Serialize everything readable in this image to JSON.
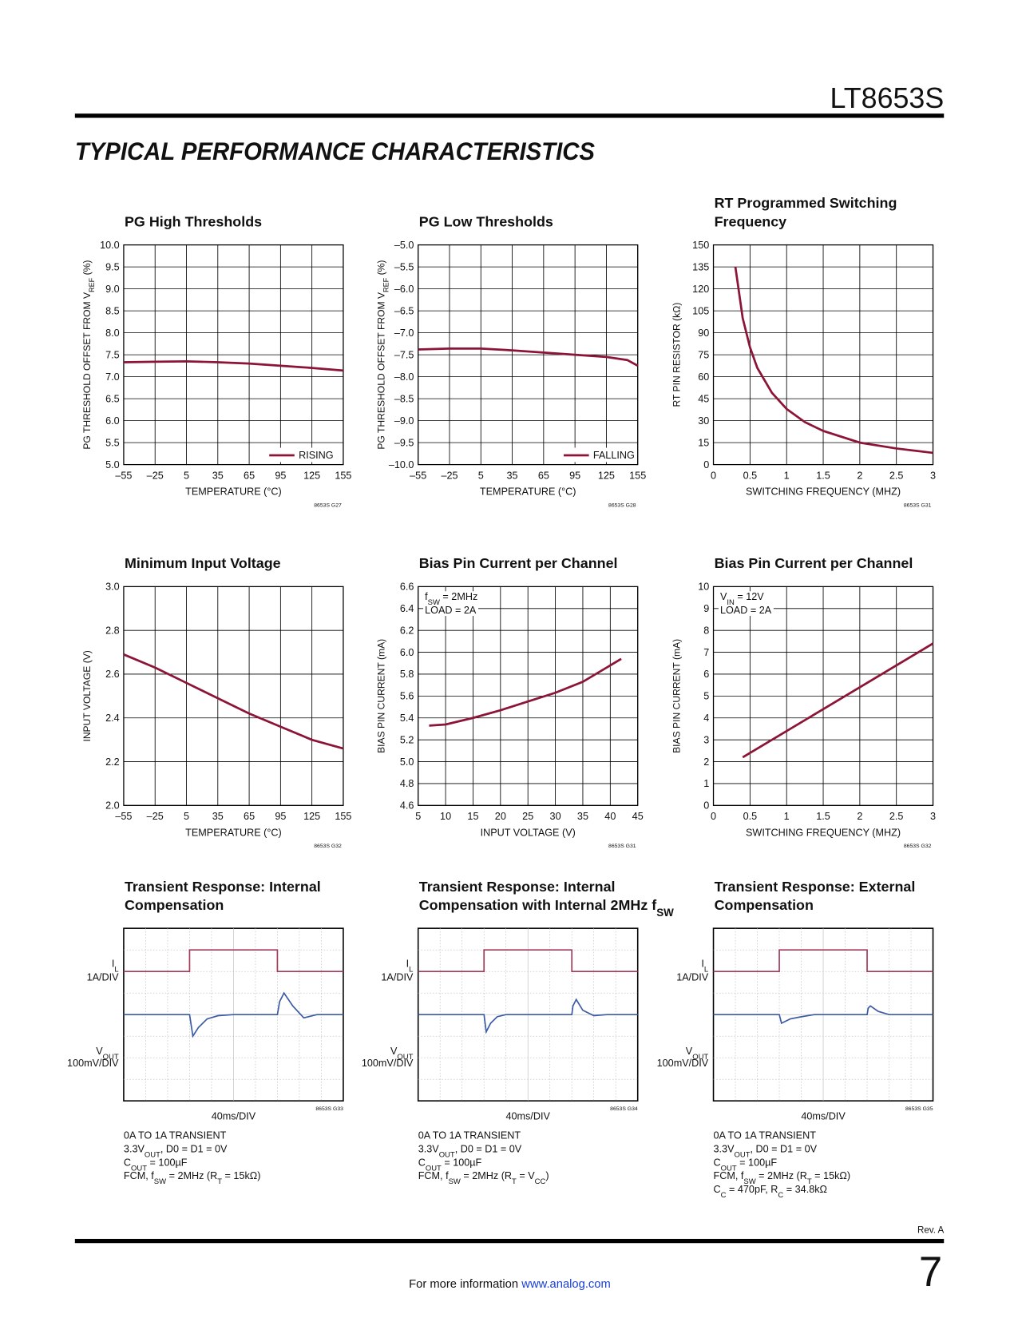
{
  "header": {
    "part": "LT8653S",
    "section": "TYPICAL PERFORMANCE CHARACTERISTICS"
  },
  "chart_data": [
    {
      "type": "line",
      "title": [
        "PG High Thresholds"
      ],
      "xlabel": "TEMPERATURE (°C)",
      "ylabel": [
        "PG THRESHOLD OFFSET FROM  V",
        "REF",
        " (%)"
      ],
      "xlim": [
        -55,
        155
      ],
      "xticks": [
        {
          "value": -55,
          "label": "–55"
        },
        {
          "value": -25,
          "label": "–25"
        },
        5,
        35,
        65,
        95,
        125,
        155
      ],
      "ylim": [
        5,
        10
      ],
      "yticks": [
        {
          "value": 5,
          "label": "5.0"
        },
        5.5,
        {
          "value": 6,
          "label": "6.0"
        },
        6.5,
        {
          "value": 7,
          "label": "7.0"
        },
        7.5,
        {
          "value": 8,
          "label": "8.0"
        },
        8.5,
        {
          "value": 9,
          "label": "9.0"
        },
        9.5,
        {
          "value": 10,
          "label": "10.0"
        }
      ],
      "grid": true,
      "legend": "lower right",
      "x": [
        -55,
        -25,
        5,
        35,
        65,
        95,
        125,
        155
      ],
      "series": [
        {
          "name": "RISING",
          "color": "#8c1537",
          "values": [
            7.33,
            7.34,
            7.35,
            7.33,
            7.3,
            7.25,
            7.2,
            7.14
          ]
        }
      ],
      "figure_id": "8653S G27"
    },
    {
      "type": "line",
      "title": [
        "PG Low Thresholds"
      ],
      "xlabel": "TEMPERATURE (°C)",
      "ylabel": [
        "PG THRESHOLD OFFSET FROM  V",
        "REF",
        " (%)"
      ],
      "xlim": [
        -55,
        155
      ],
      "xticks": [
        {
          "value": -55,
          "label": "–55"
        },
        {
          "value": -25,
          "label": "–25"
        },
        5,
        35,
        65,
        95,
        125,
        155
      ],
      "ylim": [
        -10,
        -5
      ],
      "yticks": [
        {
          "value": -10,
          "label": "–10.0"
        },
        {
          "value": -9.5,
          "label": "–9.5"
        },
        {
          "value": -9,
          "label": "–9.0"
        },
        {
          "value": -8.5,
          "label": "–8.5"
        },
        {
          "value": -8,
          "label": "–8.0"
        },
        {
          "value": -7.5,
          "label": "–7.5"
        },
        {
          "value": -7,
          "label": "–7.0"
        },
        {
          "value": -6.5,
          "label": "–6.5"
        },
        {
          "value": -6,
          "label": "–6.0"
        },
        {
          "value": -5.5,
          "label": "–5.5"
        },
        {
          "value": -5,
          "label": "–5.0"
        }
      ],
      "grid": true,
      "legend": "lower right",
      "x": [
        -55,
        -25,
        5,
        35,
        65,
        95,
        125,
        145,
        155
      ],
      "series": [
        {
          "name": "FALLING",
          "color": "#8c1537",
          "values": [
            -7.38,
            -7.36,
            -7.36,
            -7.4,
            -7.45,
            -7.5,
            -7.55,
            -7.62,
            -7.75
          ]
        }
      ],
      "figure_id": "8653S G28"
    },
    {
      "type": "line",
      "title": [
        "RT Programmed Switching",
        "Frequency"
      ],
      "xlabel": "SWITCHING FREQUENCY (MHZ)",
      "ylabel": "RT PIN RESISTOR (kΩ)",
      "xlim": [
        0,
        3
      ],
      "xticks": [
        0,
        0.5,
        1,
        1.5,
        2,
        2.5,
        3
      ],
      "ylim": [
        0,
        150
      ],
      "yticks": [
        0,
        15,
        30,
        45,
        60,
        75,
        90,
        105,
        120,
        135,
        150
      ],
      "grid": true,
      "x": [
        0.3,
        0.4,
        0.5,
        0.6,
        0.8,
        1,
        1.25,
        1.5,
        2,
        2.5,
        3
      ],
      "series": [
        {
          "color": "#8c1537",
          "values": [
            135,
            100,
            80,
            66,
            49,
            38,
            29,
            23,
            15,
            11,
            8
          ]
        }
      ],
      "figure_id": "8653S G31"
    },
    {
      "type": "line",
      "title": [
        "Minimum Input Voltage"
      ],
      "xlabel": "TEMPERATURE (°C)",
      "ylabel": "INPUT VOLTAGE (V)",
      "xlim": [
        -55,
        155
      ],
      "xticks": [
        {
          "value": -55,
          "label": "–55"
        },
        {
          "value": -25,
          "label": "–25"
        },
        5,
        35,
        65,
        95,
        125,
        155
      ],
      "ylim": [
        2,
        3
      ],
      "yticks": [
        {
          "value": 2,
          "label": "2.0"
        },
        2.2,
        2.4,
        2.6,
        2.8,
        {
          "value": 3,
          "label": "3.0"
        }
      ],
      "grid": true,
      "x": [
        -55,
        -25,
        5,
        35,
        65,
        95,
        125,
        155
      ],
      "series": [
        {
          "color": "#8c1537",
          "values": [
            2.69,
            2.63,
            2.56,
            2.49,
            2.42,
            2.36,
            2.3,
            2.26
          ]
        }
      ],
      "figure_id": "8653S G32"
    },
    {
      "type": "line",
      "title": [
        "Bias Pin Current per Channel"
      ],
      "xlabel": "INPUT VOLTAGE (V)",
      "ylabel": "BIAS PIN CURRENT  (mA)",
      "xlim": [
        5,
        45
      ],
      "xticks": [
        5,
        10,
        15,
        20,
        25,
        30,
        35,
        40,
        45
      ],
      "ylim": [
        4.6,
        6.6
      ],
      "yticks": [
        4.6,
        4.8,
        {
          "value": 5,
          "label": "5.0"
        },
        5.2,
        5.4,
        5.6,
        5.8,
        {
          "value": 6,
          "label": "6.0"
        },
        6.2,
        6.4,
        6.6
      ],
      "grid": true,
      "annotations": [
        [
          "f",
          "SW",
          " = 2MHz"
        ],
        "LOAD = 2A"
      ],
      "x": [
        7,
        10,
        15,
        20,
        25,
        30,
        35,
        42
      ],
      "series": [
        {
          "color": "#8c1537",
          "values": [
            5.33,
            5.34,
            5.4,
            5.47,
            5.55,
            5.63,
            5.73,
            5.94
          ]
        }
      ],
      "figure_id": "8653S G31"
    },
    {
      "type": "line",
      "title": [
        "Bias Pin Current per Channel"
      ],
      "xlabel": "SWITCHING FREQUENCY (MHZ)",
      "ylabel": "BIAS PIN CURRENT  (mA)",
      "xlim": [
        0,
        3
      ],
      "xticks": [
        0,
        0.5,
        1,
        1.5,
        2,
        2.5,
        3
      ],
      "ylim": [
        0,
        10
      ],
      "yticks": [
        0,
        1,
        2,
        3,
        4,
        5,
        6,
        7,
        8,
        9,
        10
      ],
      "grid": true,
      "annotations": [
        [
          "V",
          "IN",
          " = 12V"
        ],
        "LOAD = 2A"
      ],
      "x": [
        0.4,
        3
      ],
      "series": [
        {
          "color": "#8c1537",
          "values": [
            2.2,
            7.4
          ]
        }
      ],
      "figure_id": "8653S G32"
    },
    {
      "type": "scope",
      "title": [
        "Transient Response: Internal",
        "Compensation"
      ],
      "xlabel": "40ms/DIV",
      "xlim": [
        0,
        10
      ],
      "ylim": [
        0,
        8
      ],
      "series": [
        {
          "name": [
            "I",
            "L"
          ],
          "scale": "1A/DIV",
          "color": "#a23a58",
          "x": [
            0,
            3,
            3,
            7,
            7,
            10
          ],
          "values": [
            6,
            6,
            7,
            7,
            6,
            6
          ]
        },
        {
          "name": [
            "V",
            "OUT"
          ],
          "scale": "100mV/DIV",
          "color": "#3b5ba5",
          "x": [
            0,
            3,
            3.15,
            3.4,
            3.8,
            4.3,
            5,
            7,
            7.1,
            7.3,
            7.7,
            8.2,
            8.8,
            10
          ],
          "values": [
            4,
            4,
            3,
            3.4,
            3.8,
            3.95,
            4,
            4,
            4.6,
            5,
            4.4,
            3.85,
            4,
            4
          ]
        }
      ],
      "figure_id": "8653S G33",
      "notes": [
        "0A TO 1A TRANSIENT",
        [
          "3.3V",
          "OUT",
          ", D0 = D1 = 0V"
        ],
        [
          "C",
          "OUT",
          " = 100µF"
        ],
        [
          "FCM, f",
          "SW",
          " = 2MHz (R",
          "T",
          " = 15kΩ)"
        ]
      ]
    },
    {
      "type": "scope",
      "title": [
        "Transient Response: Internal",
        [
          "Compensation with Internal 2MHz f",
          "SW"
        ]
      ],
      "xlabel": "40ms/DIV",
      "xlim": [
        0,
        10
      ],
      "ylim": [
        0,
        8
      ],
      "series": [
        {
          "name": [
            "I",
            "L"
          ],
          "scale": "1A/DIV",
          "color": "#a23a58",
          "x": [
            0,
            3,
            3,
            7,
            7,
            10
          ],
          "values": [
            6,
            6,
            7,
            7,
            6,
            6
          ]
        },
        {
          "name": [
            "V",
            "OUT"
          ],
          "scale": "100mV/DIV",
          "color": "#3b5ba5",
          "x": [
            0,
            3,
            3.1,
            3.3,
            3.6,
            4,
            7,
            7.05,
            7.2,
            7.5,
            8,
            8.6,
            10
          ],
          "values": [
            4,
            4,
            3.2,
            3.6,
            3.9,
            4,
            4,
            4.4,
            4.7,
            4.2,
            3.95,
            4,
            4
          ]
        }
      ],
      "figure_id": "8653S G34",
      "notes": [
        "0A TO 1A TRANSIENT",
        [
          "3.3V",
          "OUT",
          ", D0 = D1 = 0V"
        ],
        [
          "C",
          "OUT",
          " = 100µF"
        ],
        [
          "FCM, f",
          "SW",
          " = 2MHz (R",
          "T",
          " = V",
          "CC",
          ")"
        ]
      ]
    },
    {
      "type": "scope",
      "title": [
        "Transient Response: External",
        "Compensation"
      ],
      "xlabel": "40ms/DIV",
      "xlim": [
        0,
        10
      ],
      "ylim": [
        0,
        8
      ],
      "series": [
        {
          "name": [
            "I",
            "L"
          ],
          "scale": "1A/DIV",
          "color": "#a23a58",
          "x": [
            0,
            3,
            3,
            7,
            7,
            10
          ],
          "values": [
            6,
            6,
            7,
            7,
            6,
            6
          ]
        },
        {
          "name": [
            "V",
            "OUT"
          ],
          "scale": "100mV/DIV",
          "color": "#3b5ba5",
          "x": [
            0,
            3,
            3.1,
            3.5,
            4,
            4.6,
            7,
            7.05,
            7.15,
            7.5,
            8,
            10
          ],
          "values": [
            4,
            4,
            3.6,
            3.8,
            3.9,
            4,
            4,
            4.3,
            4.4,
            4.15,
            4,
            4
          ]
        }
      ],
      "figure_id": "8653S G35",
      "notes": [
        "0A TO 1A TRANSIENT",
        [
          "3.3V",
          "OUT",
          ", D0 = D1 = 0V"
        ],
        [
          "C",
          "OUT",
          " = 100µF"
        ],
        [
          "FCM, f",
          "SW",
          " = 2MHz (R",
          "T",
          " = 15kΩ)"
        ],
        [
          "C",
          "C",
          " = 470pF, R",
          "C",
          " = 34.8kΩ"
        ]
      ]
    }
  ],
  "footer": {
    "revision": "Rev. A",
    "more_info": "For more information",
    "link": "www.analog.com",
    "page": "7"
  }
}
